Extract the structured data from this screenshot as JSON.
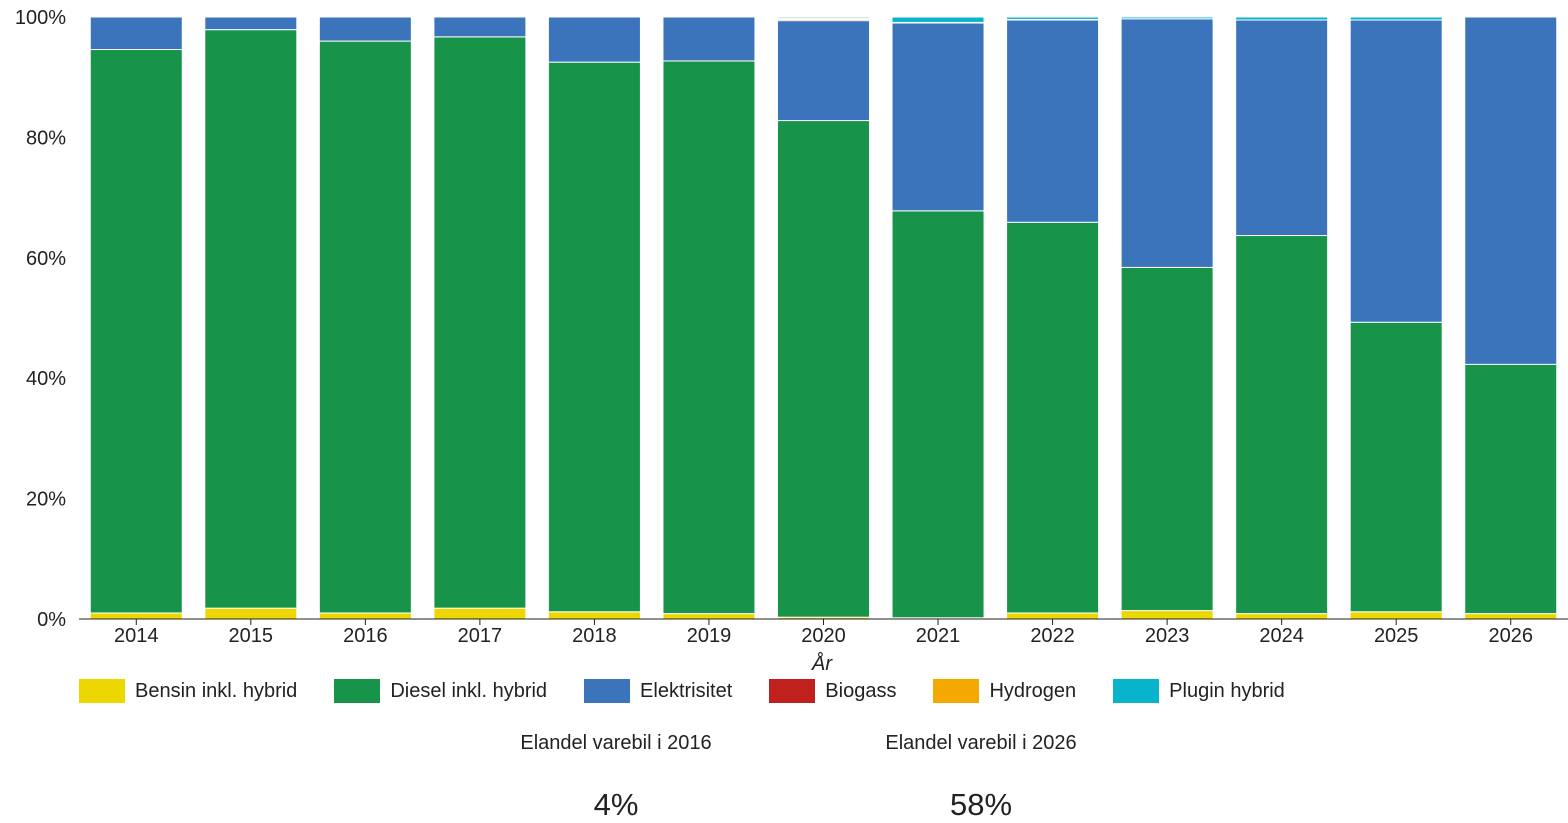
{
  "chart_data": {
    "type": "bar",
    "stacked": true,
    "normalized": true,
    "xlabel": "År",
    "ylabel": "",
    "ylim": [
      0,
      100
    ],
    "yticks": [
      "0%",
      "20%",
      "40%",
      "60%",
      "80%",
      "100%"
    ],
    "grid": false,
    "legend_position": "bottom",
    "categories": [
      "2014",
      "2015",
      "2016",
      "2017",
      "2018",
      "2019",
      "2020",
      "2021",
      "2022",
      "2023",
      "2024",
      "2025",
      "2026"
    ],
    "series": [
      {
        "name": "Bensin inkl. hybrid",
        "color": "#ecd800",
        "values": [
          1.0,
          1.8,
          1.0,
          1.8,
          1.2,
          0.9,
          0.3,
          0.2,
          1.0,
          1.4,
          0.9,
          1.2,
          0.9
        ]
      },
      {
        "name": "Diesel inkl. hybrid",
        "color": "#17944a",
        "values": [
          93.6,
          96.1,
          95.0,
          94.9,
          91.3,
          91.8,
          82.5,
          67.6,
          64.9,
          57.0,
          62.8,
          48.1,
          41.4
        ]
      },
      {
        "name": "Elektrisitet",
        "color": "#3c74bb",
        "values": [
          5.4,
          2.1,
          4.0,
          3.3,
          7.5,
          7.3,
          16.6,
          31.2,
          33.6,
          41.3,
          35.8,
          50.2,
          57.7
        ]
      },
      {
        "name": "Biogass",
        "color": "#c0201e",
        "values": [
          0,
          0,
          0,
          0,
          0,
          0,
          0.2,
          0.1,
          0.1,
          0,
          0,
          0,
          0
        ]
      },
      {
        "name": "Hydrogen",
        "color": "#f5a800",
        "values": [
          0,
          0,
          0,
          0,
          0,
          0,
          0.2,
          0,
          0,
          0,
          0,
          0,
          0
        ]
      },
      {
        "name": "Plugin hybrid",
        "color": "#08b4cc",
        "values": [
          0,
          0,
          0,
          0,
          0,
          0,
          0.2,
          0.9,
          0.4,
          0.3,
          0.5,
          0.5,
          0
        ]
      }
    ]
  },
  "kpis": [
    {
      "label": "Elandel varebil i 2016",
      "value": "4%"
    },
    {
      "label": "Elandel varebil i 2026",
      "value": "58%"
    }
  ]
}
